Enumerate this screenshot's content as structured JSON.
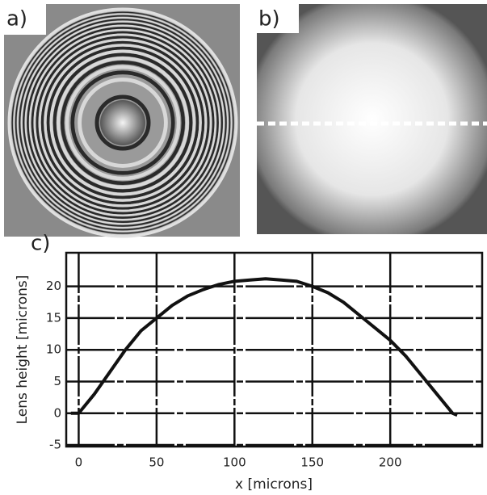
{
  "panel_a_label": "a)",
  "panel_b_label": "b)",
  "chart_data": {
    "type": "line",
    "panel_label": "c)",
    "x_label": "x [microns]",
    "y_label": "Lens height [microns]",
    "x": [
      -5,
      0,
      10,
      20,
      30,
      40,
      50,
      60,
      70,
      80,
      90,
      100,
      110,
      120,
      130,
      140,
      150,
      160,
      170,
      180,
      190,
      200,
      210,
      220,
      230,
      240,
      243
    ],
    "series": [
      {
        "color": "#111111",
        "values": [
          0,
          0,
          3,
          6.5,
          10,
          13,
          15,
          17,
          18.5,
          19.5,
          20.3,
          20.8,
          21,
          21.2,
          21,
          20.8,
          20,
          19,
          17.5,
          15.5,
          13.5,
          11.5,
          9,
          6,
          3,
          0,
          -0.3
        ]
      }
    ],
    "xlim": [
      -8,
      259
    ],
    "ylim": [
      -5.25,
      25.3
    ],
    "xticks": [
      0,
      50,
      100,
      150,
      200
    ],
    "yticks": [
      -5,
      0,
      5,
      10,
      15,
      20
    ],
    "grid": true
  }
}
